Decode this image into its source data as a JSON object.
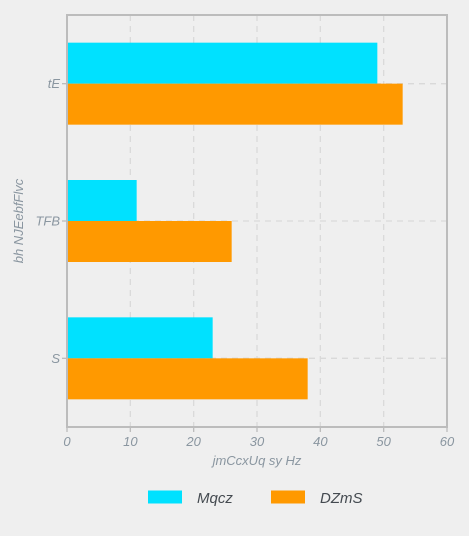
{
  "chart_data": {
    "type": "bar",
    "orientation": "horizontal",
    "categories": [
      "tE",
      "TFB",
      "S"
    ],
    "series": [
      {
        "name": "Mqcz",
        "values": [
          49,
          11,
          23
        ],
        "color": "#00e1ff"
      },
      {
        "name": "DZmS",
        "values": [
          53,
          26,
          38
        ],
        "color": "#ff9900"
      }
    ],
    "title": "",
    "xlabel": "jmCcxUq sy Hz",
    "ylabel": "bh NJEebfFlvc",
    "xlim": [
      0,
      60
    ],
    "xticks": [
      0,
      10,
      20,
      30,
      40,
      50,
      60
    ],
    "grid": true,
    "legend_position": "bottom"
  },
  "colors": {
    "background": "#efefef",
    "frame": "#bcbcbc",
    "grid": "#d9d9d9",
    "text": "#8a96a0"
  }
}
